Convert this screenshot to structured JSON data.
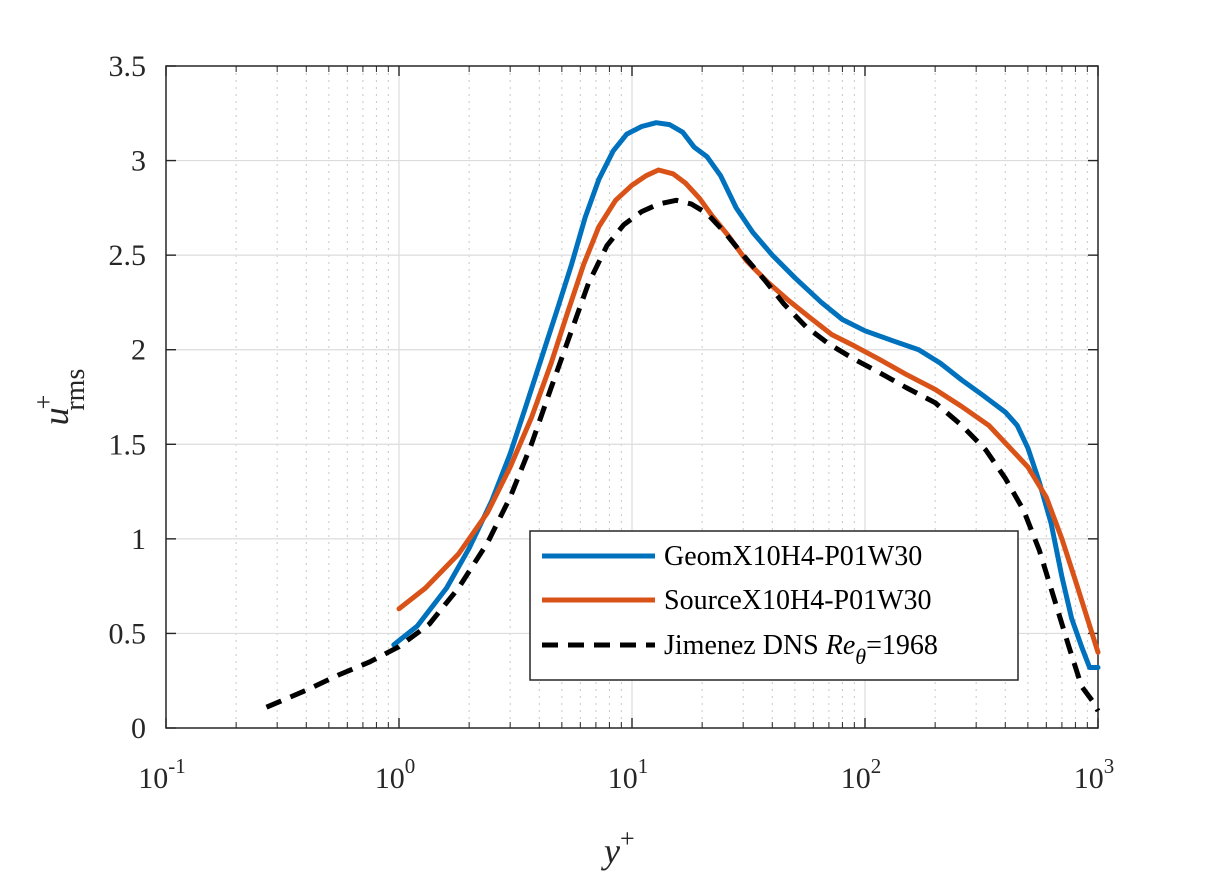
{
  "chart_data": {
    "type": "line",
    "x_scale": "log",
    "y_scale": "linear",
    "xlim": [
      0.1,
      1000
    ],
    "ylim": [
      0,
      3.5
    ],
    "grid": true,
    "minor_grid": true,
    "legend_position": "bottom-right",
    "xlabel": {
      "base": "y",
      "sup": "+"
    },
    "ylabel": {
      "base": "u",
      "sup": "+",
      "sub": "rms"
    },
    "x_ticks": [
      {
        "value": 0.1,
        "base": "10",
        "exp": "-1"
      },
      {
        "value": 1,
        "base": "10",
        "exp": "0"
      },
      {
        "value": 10,
        "base": "10",
        "exp": "1"
      },
      {
        "value": 100,
        "base": "10",
        "exp": "2"
      },
      {
        "value": 1000,
        "base": "10",
        "exp": "3"
      }
    ],
    "y_ticks": [
      {
        "value": 0,
        "label": "0"
      },
      {
        "value": 0.5,
        "label": "0.5"
      },
      {
        "value": 1,
        "label": "1"
      },
      {
        "value": 1.5,
        "label": "1.5"
      },
      {
        "value": 2,
        "label": "2"
      },
      {
        "value": 2.5,
        "label": "2.5"
      },
      {
        "value": 3,
        "label": "3"
      },
      {
        "value": 3.5,
        "label": "3.5"
      }
    ],
    "series": [
      {
        "name": "GeomX10H4-P01W30",
        "color": "#0072BD",
        "dash": "solid",
        "points": [
          [
            0.95,
            0.44
          ],
          [
            1.2,
            0.54
          ],
          [
            1.6,
            0.74
          ],
          [
            2.0,
            0.95
          ],
          [
            2.5,
            1.2
          ],
          [
            3.0,
            1.45
          ],
          [
            3.5,
            1.7
          ],
          [
            4.0,
            1.92
          ],
          [
            4.8,
            2.22
          ],
          [
            5.5,
            2.45
          ],
          [
            6.3,
            2.7
          ],
          [
            7.2,
            2.9
          ],
          [
            8.3,
            3.05
          ],
          [
            9.5,
            3.14
          ],
          [
            11,
            3.18
          ],
          [
            12.7,
            3.2
          ],
          [
            14.5,
            3.19
          ],
          [
            16.5,
            3.15
          ],
          [
            18.5,
            3.07
          ],
          [
            21,
            3.02
          ],
          [
            24,
            2.92
          ],
          [
            28,
            2.75
          ],
          [
            33,
            2.62
          ],
          [
            40,
            2.5
          ],
          [
            50,
            2.38
          ],
          [
            65,
            2.25
          ],
          [
            80,
            2.16
          ],
          [
            100,
            2.1
          ],
          [
            130,
            2.05
          ],
          [
            170,
            2.0
          ],
          [
            210,
            1.93
          ],
          [
            260,
            1.84
          ],
          [
            320,
            1.76
          ],
          [
            400,
            1.67
          ],
          [
            450,
            1.6
          ],
          [
            500,
            1.48
          ],
          [
            560,
            1.3
          ],
          [
            630,
            1.08
          ],
          [
            700,
            0.8
          ],
          [
            770,
            0.58
          ],
          [
            850,
            0.43
          ],
          [
            920,
            0.32
          ],
          [
            1000,
            0.32
          ]
        ]
      },
      {
        "name": "SourceX10H4-P01W30",
        "color": "#D95319",
        "dash": "solid",
        "points": [
          [
            1.0,
            0.63
          ],
          [
            1.3,
            0.74
          ],
          [
            1.8,
            0.92
          ],
          [
            2.4,
            1.14
          ],
          [
            3.0,
            1.38
          ],
          [
            3.7,
            1.64
          ],
          [
            4.5,
            1.93
          ],
          [
            5.3,
            2.2
          ],
          [
            6.2,
            2.45
          ],
          [
            7.2,
            2.65
          ],
          [
            8.5,
            2.79
          ],
          [
            10,
            2.87
          ],
          [
            11.5,
            2.92
          ],
          [
            13,
            2.95
          ],
          [
            15,
            2.93
          ],
          [
            17,
            2.88
          ],
          [
            19.5,
            2.8
          ],
          [
            22,
            2.71
          ],
          [
            26,
            2.6
          ],
          [
            31,
            2.47
          ],
          [
            38,
            2.36
          ],
          [
            47,
            2.26
          ],
          [
            58,
            2.17
          ],
          [
            72,
            2.08
          ],
          [
            90,
            2.02
          ],
          [
            115,
            1.95
          ],
          [
            150,
            1.87
          ],
          [
            200,
            1.79
          ],
          [
            260,
            1.7
          ],
          [
            340,
            1.6
          ],
          [
            420,
            1.48
          ],
          [
            500,
            1.38
          ],
          [
            600,
            1.22
          ],
          [
            700,
            1.0
          ],
          [
            800,
            0.78
          ],
          [
            900,
            0.58
          ],
          [
            1000,
            0.4
          ]
        ]
      },
      {
        "name": "Jimenez DNS Re_θ=1968",
        "color": "#000000",
        "dash": "dashed",
        "points": [
          [
            0.27,
            0.11
          ],
          [
            0.4,
            0.2
          ],
          [
            0.55,
            0.28
          ],
          [
            0.75,
            0.35
          ],
          [
            1.0,
            0.43
          ],
          [
            1.35,
            0.55
          ],
          [
            1.8,
            0.74
          ],
          [
            2.4,
            0.98
          ],
          [
            3.0,
            1.22
          ],
          [
            3.7,
            1.5
          ],
          [
            4.5,
            1.8
          ],
          [
            5.5,
            2.1
          ],
          [
            6.5,
            2.35
          ],
          [
            7.8,
            2.55
          ],
          [
            9.2,
            2.66
          ],
          [
            11,
            2.73
          ],
          [
            13,
            2.77
          ],
          [
            15.5,
            2.79
          ],
          [
            18,
            2.77
          ],
          [
            21,
            2.72
          ],
          [
            25,
            2.62
          ],
          [
            30,
            2.5
          ],
          [
            37,
            2.37
          ],
          [
            45,
            2.24
          ],
          [
            56,
            2.12
          ],
          [
            70,
            2.03
          ],
          [
            90,
            1.95
          ],
          [
            115,
            1.88
          ],
          [
            150,
            1.8
          ],
          [
            200,
            1.72
          ],
          [
            260,
            1.6
          ],
          [
            330,
            1.47
          ],
          [
            400,
            1.32
          ],
          [
            480,
            1.15
          ],
          [
            560,
            0.94
          ],
          [
            650,
            0.68
          ],
          [
            750,
            0.43
          ],
          [
            850,
            0.22
          ],
          [
            950,
            0.14
          ],
          [
            1000,
            0.09
          ]
        ]
      }
    ],
    "legend": [
      {
        "text": "GeomX10H4-P01W30"
      },
      {
        "text": "SourceX10H4-P01W30"
      },
      {
        "text_pre": "Jimenez DNS ",
        "text_it": "Re",
        "text_sub": "θ",
        "text_post": "=1968"
      }
    ]
  }
}
